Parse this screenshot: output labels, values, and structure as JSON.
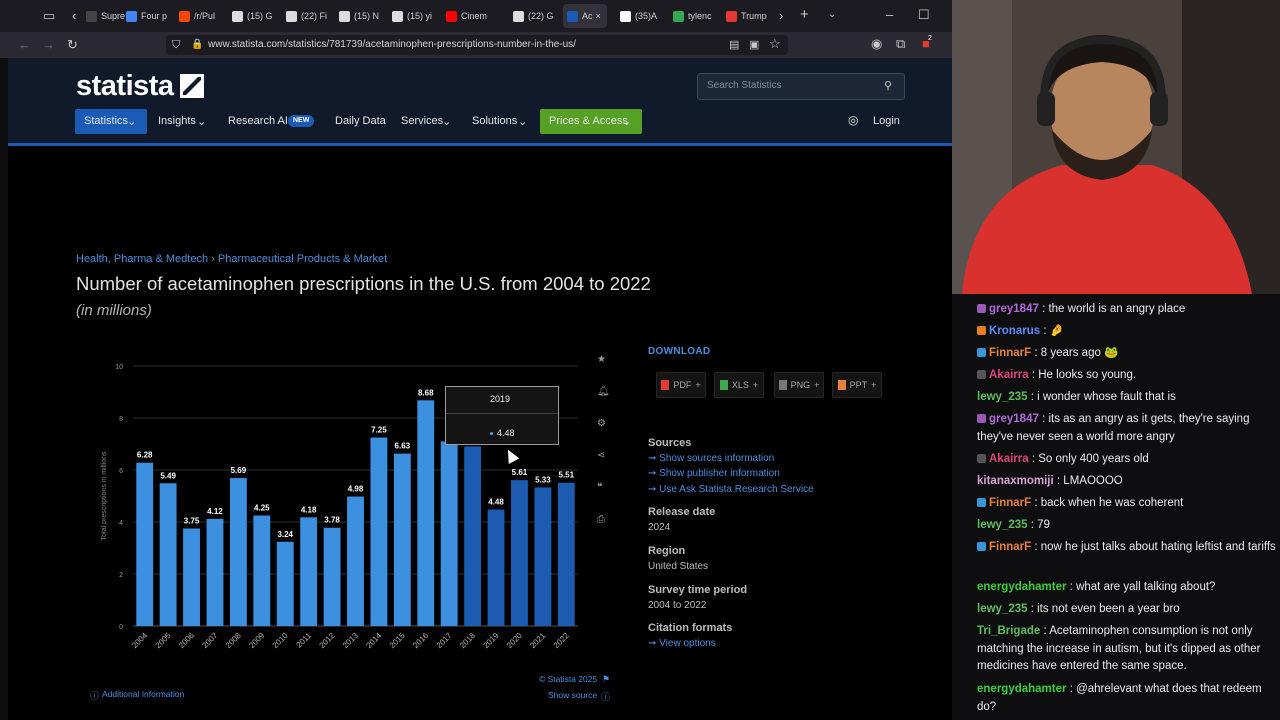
{
  "browser": {
    "tabs": [
      {
        "label": "Supre",
        "color": "#444"
      },
      {
        "label": "Four p",
        "color": "#4285f4"
      },
      {
        "label": "/r/Pul",
        "color": "#ff4500"
      },
      {
        "label": "(15) G",
        "color": "#ddd"
      },
      {
        "label": "(22) Fi",
        "color": "#ddd"
      },
      {
        "label": "(15) N",
        "color": "#ddd"
      },
      {
        "label": "(15) yi",
        "color": "#ddd"
      },
      {
        "label": "Cinem",
        "color": "#ff0000"
      },
      {
        "label": "(22) G",
        "color": "#ddd"
      },
      {
        "label": "Ac",
        "color": "#1a5bb6"
      },
      {
        "label": "(35)A",
        "color": "#fff"
      },
      {
        "label": "tylenc",
        "color": "#34a853"
      },
      {
        "label": "Trump",
        "color": "#e53935"
      }
    ],
    "url": "www.statista.com/statistics/781739/acetaminophen-prescriptions-number-in-the-us/",
    "extension_badge": "2"
  },
  "statista": {
    "logo_text": "statista",
    "search_placeholder": "Search Statistics",
    "nav": {
      "statistics": "Statistics",
      "insights": "Insights",
      "research_ai": "Research AI",
      "new_badge": "NEW",
      "daily_data": "Daily Data",
      "services": "Services",
      "solutions": "Solutions",
      "prices": "Prices & Access",
      "login": "Login"
    },
    "breadcrumb": [
      "Health, Pharma & Medtech",
      "Pharmaceutical Products & Market"
    ],
    "title": "Number of acetaminophen prescriptions in the U.S. from 2004 to 2022",
    "subtitle": "(in millions)",
    "tooltip": {
      "year": "2019",
      "value": "4.48"
    },
    "copyright": "© Statista 2025",
    "show_source": "Show source",
    "additional_info": "Additional Information",
    "download_label": "DOWNLOAD",
    "download_buttons": [
      "PDF",
      "XLS",
      "PNG",
      "PPT"
    ],
    "sources_heading": "Sources",
    "source_links": [
      "Show sources information",
      "Show publisher information",
      "Use Ask Statista Research Service"
    ],
    "release_date_heading": "Release date",
    "release_date": "2024",
    "region_heading": "Region",
    "region": "United States",
    "survey_heading": "Survey time period",
    "survey_period": "2004 to 2022",
    "citation_heading": "Citation formats",
    "view_options": "View options"
  },
  "chart_data": {
    "type": "bar",
    "title": "",
    "ylabel": "Total prescriptions in millions",
    "ylim": [
      0,
      10
    ],
    "yticks": [
      0,
      2,
      4,
      6,
      8,
      10
    ],
    "categories": [
      "2004",
      "2005",
      "2006",
      "2007",
      "2008",
      "2009",
      "2010",
      "2011",
      "2012",
      "2013",
      "2014",
      "2015",
      "2016",
      "2017",
      "2018",
      "2019",
      "2020",
      "2021",
      "2022"
    ],
    "values": [
      6.28,
      5.49,
      3.75,
      4.12,
      5.69,
      4.25,
      3.24,
      4.18,
      3.78,
      4.98,
      7.25,
      6.63,
      8.68,
      7.1,
      6.91,
      4.48,
      5.61,
      5.33,
      5.51
    ],
    "labels": [
      "6.28",
      "5.49",
      "3.75",
      "4.12",
      "5.69",
      "4.25",
      "3.24",
      "4.18",
      "3.78",
      "4.98",
      "7.25",
      "6.63",
      "8.68",
      "",
      "",
      "4.48",
      "5.61",
      "5.33",
      "5.51"
    ],
    "highlight_from": "2018",
    "colors": {
      "normal": "#3d8fe0",
      "highlight": "#1c5bb0"
    }
  },
  "chat": [
    {
      "user": "grey1847",
      "color": "#b26ad8",
      "badge": "#9b59b6",
      "msg": "the world is an angry place"
    },
    {
      "user": "Kronarus",
      "color": "#5b8cff",
      "badge": "#e67e22",
      "msg": "🤌"
    },
    {
      "user": "FinnarF",
      "color": "#e8803a",
      "badge": "#3498db",
      "msg": "8 years ago 🐸"
    },
    {
      "user": "Akairra",
      "color": "#e0457b",
      "badge": "#555",
      "msg": "He looks so young."
    },
    {
      "user": "lewy_235",
      "color": "#5fbf5f",
      "badge": "",
      "msg": "i wonder whose fault that is"
    },
    {
      "user": "grey1847",
      "color": "#b26ad8",
      "badge": "#9b59b6",
      "msg": "its as an angry as it gets, they're saying they've never seen a world more angry"
    },
    {
      "user": "Akairra",
      "color": "#e0457b",
      "badge": "#555",
      "msg": "So only 400 years old"
    },
    {
      "user": "kitanaxmomiji",
      "color": "#d9a0d9",
      "badge": "",
      "msg": "LMAOOOO"
    },
    {
      "user": "FinnarF",
      "color": "#e8803a",
      "badge": "#3498db",
      "msg": "back when he was coherent"
    },
    {
      "user": "lewy_235",
      "color": "#5fbf5f",
      "badge": "",
      "msg": "79"
    },
    {
      "user": "FinnarF",
      "color": "#e8803a",
      "badge": "#3498db",
      "msg": "now he just talks about hating leftist and tariffs"
    },
    {
      "user": "energydahamter",
      "color": "#3ad13a",
      "badge": "",
      "msg": "what are yall talking about?"
    },
    {
      "user": "lewy_235",
      "color": "#5fbf5f",
      "badge": "",
      "msg": "its not even been a year bro"
    },
    {
      "user": "Tri_Brigade",
      "color": "#5fbf5f",
      "badge": "",
      "msg": "Acetaminophen consumption is not only matching the increase in autism, but it's dipped as other medicines have entered the same space."
    },
    {
      "user": "energydahamter",
      "color": "#3ad13a",
      "badge": "",
      "msg": "@ahrelevant what does that redeem do?"
    }
  ]
}
